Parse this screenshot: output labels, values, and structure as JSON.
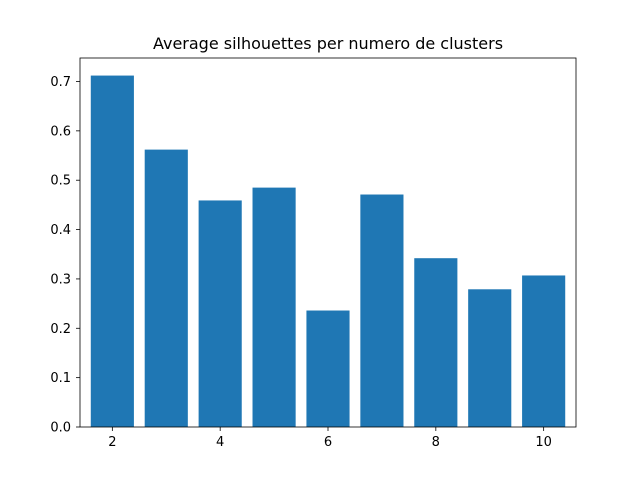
{
  "chart_data": {
    "type": "bar",
    "title": "Average silhouettes per numero de clusters",
    "xlabel": "",
    "ylabel": "",
    "x": [
      2,
      3,
      4,
      5,
      6,
      7,
      8,
      9,
      10
    ],
    "values": [
      0.712,
      0.562,
      0.459,
      0.485,
      0.236,
      0.471,
      0.342,
      0.279,
      0.307
    ],
    "xticks": [
      2,
      4,
      6,
      8,
      10
    ],
    "xtick_labels": [
      "2",
      "4",
      "6",
      "8",
      "10"
    ],
    "yticks": [
      0.0,
      0.1,
      0.2,
      0.3,
      0.4,
      0.5,
      0.6,
      0.7
    ],
    "ytick_labels": [
      "0.0",
      "0.1",
      "0.2",
      "0.3",
      "0.4",
      "0.5",
      "0.6",
      "0.7"
    ],
    "xlim": [
      1.4,
      10.6
    ],
    "ylim": [
      0,
      0.7476
    ],
    "grid": false,
    "colors": {
      "bar": "#1f77b4",
      "axis": "#000000",
      "background": "#ffffff"
    }
  }
}
